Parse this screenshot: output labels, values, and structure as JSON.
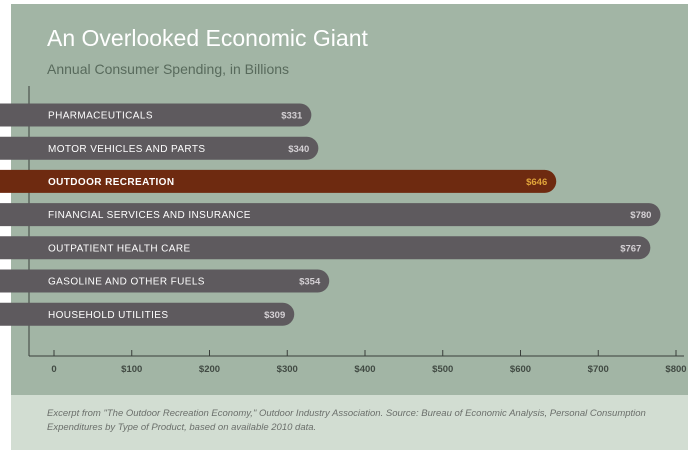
{
  "title": "An Overlooked Economic Giant",
  "subtitle": "Annual Consumer Spending, in Billions",
  "footnote": "Excerpt from \"The Outdoor Recreation Economy,\" Outdoor Industry Association.  Source:  Bureau of Economic Analysis, Personal Consumption Expenditures by Type of Product, based on available 2010 data.",
  "colors": {
    "background": "#a2b5a5",
    "footer_background": "#d2ddd2",
    "bar": "#5e5a5e",
    "highlight_bar": "#6e2a10",
    "highlight_value": "#e0a43a",
    "bar_value": "#d4d0d4"
  },
  "chart_data": {
    "type": "bar",
    "orientation": "horizontal",
    "title": "An Overlooked Economic Giant",
    "subtitle": "Annual Consumer Spending, in Billions",
    "categories": [
      "PHARMACEUTICALS",
      "MOTOR VEHICLES AND PARTS",
      "OUTDOOR RECREATION",
      "FINANCIAL SERVICES AND INSURANCE",
      "OUTPATIENT HEALTH CARE",
      "GASOLINE AND OTHER FUELS",
      "HOUSEHOLD UTILITIES"
    ],
    "values": [
      331,
      340,
      646,
      780,
      767,
      354,
      309
    ],
    "value_labels": [
      "$331",
      "$340",
      "$646",
      "$780",
      "$767",
      "$354",
      "$309"
    ],
    "highlight": "OUTDOOR RECREATION",
    "xlim": [
      0,
      800
    ],
    "xticks": [
      0,
      100,
      200,
      300,
      400,
      500,
      600,
      700,
      800
    ],
    "xtick_labels": [
      "0",
      "$100",
      "$200",
      "$300",
      "$400",
      "$500",
      "$600",
      "$700",
      "$800"
    ],
    "grid": false,
    "legend": "none"
  }
}
